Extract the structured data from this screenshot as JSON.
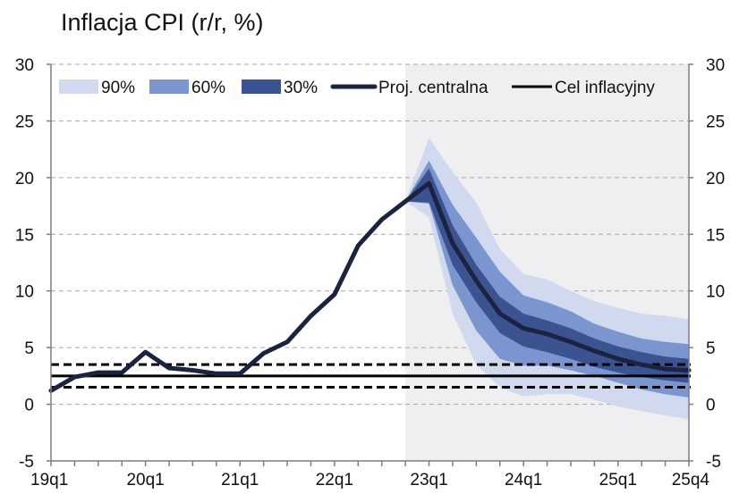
{
  "chart_data": {
    "type": "fan",
    "title": "Inflacja CPI (r/r, %)",
    "ylim": [
      -5,
      30
    ],
    "yticks": [
      -5,
      0,
      5,
      10,
      15,
      20,
      25,
      30
    ],
    "ytick_labels": [
      "-5",
      "0",
      "5",
      "10",
      "15",
      "20",
      "25",
      "30"
    ],
    "x_categories": [
      "19q1",
      "19q2",
      "19q3",
      "19q4",
      "20q1",
      "20q2",
      "20q3",
      "20q4",
      "21q1",
      "21q2",
      "21q3",
      "21q4",
      "22q1",
      "22q2",
      "22q3",
      "22q4",
      "23q1",
      "23q2",
      "23q3",
      "23q4",
      "24q1",
      "24q2",
      "24q3",
      "24q4",
      "25q1",
      "25q2",
      "25q3",
      "25q4"
    ],
    "xtick_labels": [
      "19q1",
      "20q1",
      "21q1",
      "22q1",
      "23q1",
      "24q1",
      "25q1",
      "25q4"
    ],
    "forecast_start": "22q4",
    "legend": {
      "fan_90": "90%",
      "fan_60": "60%",
      "fan_30": "30%",
      "central": "Proj. centralna",
      "target": "Cel inflacyjny"
    },
    "colors": {
      "forecast_bg": "#efeff2",
      "fan_90": "#d0d9ed",
      "fan_60": "#7b95cf",
      "fan_30": "#3c5392",
      "central": "#1c2340",
      "target": "#000000",
      "grid": "#a6a6a6"
    },
    "central": [
      1.2,
      2.4,
      2.8,
      2.8,
      4.6,
      3.2,
      3.0,
      2.7,
      2.7,
      4.5,
      5.5,
      7.8,
      9.7,
      14.0,
      16.3,
      17.9,
      19.5,
      14.2,
      10.9,
      8.0,
      6.7,
      6.2,
      5.5,
      4.7,
      4.0,
      3.5,
      3.1,
      3.0
    ],
    "historical_until": "22q4",
    "fan_x": [
      "22q4",
      "23q1",
      "23q2",
      "23q3",
      "23q4",
      "24q1",
      "24q2",
      "24q3",
      "24q4",
      "25q1",
      "25q2",
      "25q3",
      "25q4"
    ],
    "fan_90": {
      "lower": [
        17.9,
        16.5,
        8.0,
        3.5,
        1.5,
        0.7,
        0.9,
        0.9,
        0.4,
        -0.2,
        -0.6,
        -1.0,
        -1.3
      ],
      "upper": [
        17.9,
        23.5,
        20.5,
        17.8,
        13.7,
        11.5,
        11.0,
        10.0,
        9.1,
        8.5,
        8.0,
        7.8,
        7.5
      ]
    },
    "fan_60": {
      "lower": [
        17.9,
        17.7,
        10.5,
        6.5,
        4.0,
        3.4,
        3.4,
        3.0,
        2.5,
        1.9,
        1.3,
        0.9,
        0.6
      ],
      "upper": [
        17.9,
        21.5,
        17.6,
        14.7,
        11.7,
        9.6,
        9.0,
        8.2,
        7.1,
        6.4,
        5.8,
        5.5,
        5.3
      ]
    },
    "fan_30": {
      "lower": [
        17.9,
        17.8,
        12.3,
        9.0,
        6.3,
        5.1,
        4.6,
        4.0,
        3.3,
        2.8,
        2.4,
        2.1,
        1.9
      ],
      "upper": [
        17.9,
        20.8,
        15.8,
        12.3,
        9.5,
        8.0,
        7.4,
        6.7,
        5.8,
        5.1,
        4.6,
        4.2,
        4.0
      ]
    },
    "target": {
      "center": 2.5,
      "upper": 3.5,
      "lower": 1.5
    }
  }
}
